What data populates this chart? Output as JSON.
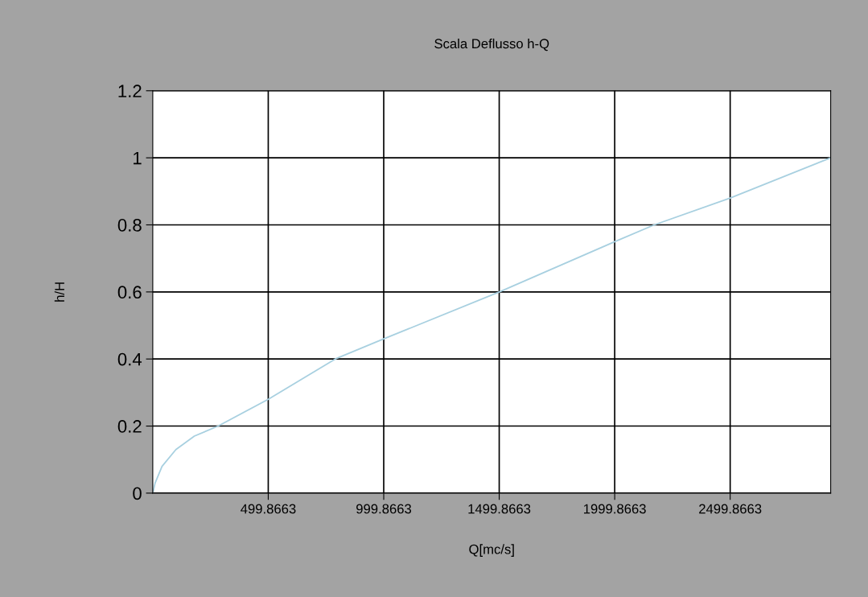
{
  "chart_data": {
    "type": "line",
    "title": "Scala Deflusso h-Q",
    "xlabel": "Q[mc/s]",
    "ylabel": "h/H",
    "series": [
      {
        "color": "#a8d0e0",
        "x": [
          0,
          10,
          40,
          100,
          180,
          283,
          500,
          790,
          1000,
          1500,
          2000,
          2171,
          2500,
          2935
        ],
        "values": [
          0,
          0.03,
          0.08,
          0.13,
          0.17,
          0.2,
          0.28,
          0.4,
          0.46,
          0.6,
          0.75,
          0.8,
          0.88,
          1
        ]
      }
    ],
    "xlim": [
      -0.1337,
      2935
    ],
    "xticks": [
      499.8663,
      999.8663,
      1499.8663,
      1999.8663,
      2499.8663
    ],
    "ylim": [
      0,
      1.2
    ],
    "yticks": [
      0,
      0.2,
      0.4,
      0.6,
      0.8,
      1,
      1.2
    ],
    "grid": true,
    "marker": "none",
    "line_style": "solid",
    "legend": false
  }
}
